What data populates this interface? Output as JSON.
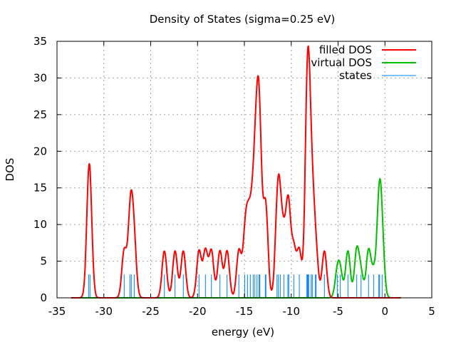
{
  "chart_data": {
    "type": "line",
    "title": "Density of States (sigma=0.25 eV)",
    "xlabel": "energy (eV)",
    "ylabel": "DOS",
    "xlim": [
      -35,
      5
    ],
    "ylim": [
      0,
      35
    ],
    "xticks": [
      -35,
      -30,
      -25,
      -20,
      -15,
      -10,
      -5,
      0,
      5
    ],
    "yticks": [
      0,
      5,
      10,
      15,
      20,
      25,
      30,
      35
    ],
    "grid": true,
    "legend_position": "top-right",
    "sigma": 0.25,
    "curve_range": [
      -33.5,
      1.7
    ],
    "state_marker_height": 3.19,
    "series": [
      {
        "name": "filled DOS",
        "color": "#ff0000",
        "kind": "broadened",
        "states": [
          [
            -31.63,
            3
          ],
          [
            -31.48,
            3
          ],
          [
            -27.83,
            2
          ],
          [
            -27.22,
            2
          ],
          [
            -27.07,
            2
          ],
          [
            -26.76,
            2
          ],
          [
            -23.54,
            2
          ],
          [
            -22.4,
            2
          ],
          [
            -21.52,
            2
          ],
          [
            -19.84,
            2
          ],
          [
            -19.16,
            2
          ],
          [
            -18.52,
            2
          ],
          [
            -17.61,
            2
          ],
          [
            -16.85,
            2
          ],
          [
            -15.59,
            2
          ],
          [
            -14.96,
            2
          ],
          [
            -14.67,
            2
          ],
          [
            -14.37,
            2
          ],
          [
            -14.06,
            2
          ],
          [
            -13.88,
            2
          ],
          [
            -13.65,
            4
          ],
          [
            -13.43,
            2
          ],
          [
            -13.35,
            4
          ],
          [
            -12.77,
            2
          ],
          [
            -12.7,
            2
          ],
          [
            -11.52,
            2
          ],
          [
            -11.37,
            2
          ],
          [
            -11.17,
            2
          ],
          [
            -10.79,
            2
          ],
          [
            -10.36,
            2
          ],
          [
            -10.26,
            2
          ],
          [
            -9.73,
            2
          ],
          [
            -9.14,
            2
          ],
          [
            -8.33,
            2
          ],
          [
            -8.27,
            4
          ],
          [
            -8.21,
            2
          ],
          [
            -8.13,
            2
          ],
          [
            -7.87,
            2
          ],
          [
            -7.75,
            2
          ],
          [
            -7.42,
            1
          ],
          [
            -7.34,
            1
          ],
          [
            -6.46,
            2
          ]
        ]
      },
      {
        "name": "virtual DOS",
        "color": "#00c000",
        "kind": "broadened",
        "states": [
          [
            -5.09,
            1
          ],
          [
            -4.76,
            1
          ],
          [
            -3.95,
            2
          ],
          [
            -3.01,
            2
          ],
          [
            -2.55,
            1
          ],
          [
            -1.75,
            2
          ],
          [
            -1.21,
            1
          ],
          [
            -0.65,
            2
          ],
          [
            -0.57,
            2
          ],
          [
            -0.3,
            2
          ]
        ]
      },
      {
        "name": "states",
        "color": "#0080ff",
        "kind": "impulses"
      }
    ]
  }
}
